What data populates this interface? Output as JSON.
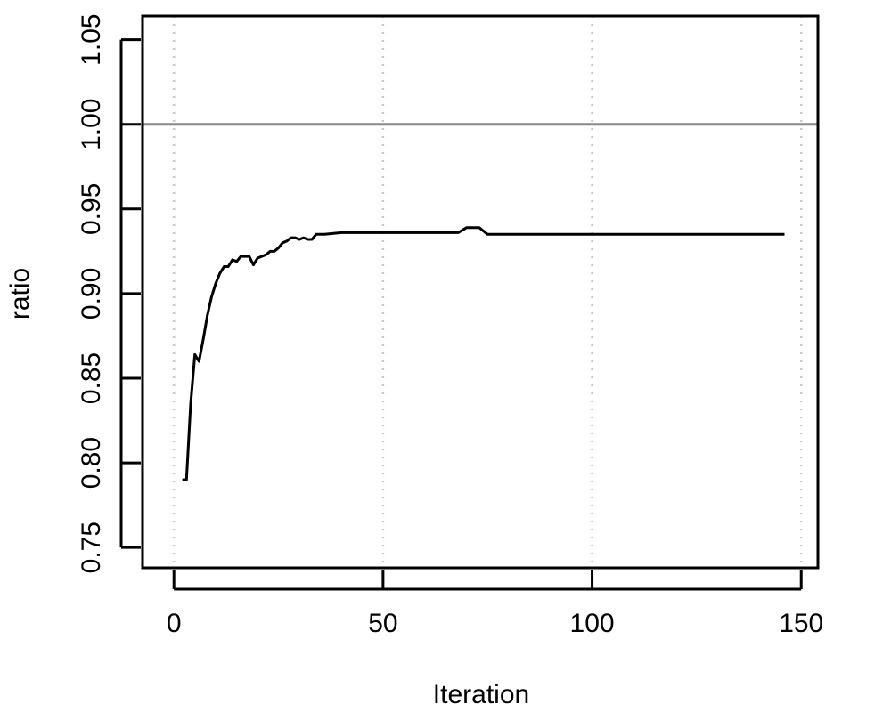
{
  "chart_data": {
    "type": "line",
    "title": "",
    "xlabel": "Iteration",
    "ylabel": "ratio",
    "xlim": [
      -7.5,
      154
    ],
    "ylim": [
      0.738,
      1.064
    ],
    "x_ticks": [
      0,
      50,
      100,
      150
    ],
    "x_tick_labels": [
      "0",
      "50",
      "100",
      "150"
    ],
    "y_ticks": [
      0.75,
      0.8,
      0.85,
      0.9,
      0.95,
      1.0,
      1.05
    ],
    "y_tick_labels": [
      "0.75",
      "0.80",
      "0.85",
      "0.90",
      "0.95",
      "1.00",
      "1.05"
    ],
    "grid": "vertical-dotted",
    "reference_line": {
      "y": 1.0,
      "color": "#888888"
    },
    "colors": {
      "series": "#000000",
      "grid": "#c8c8c8",
      "frame": "#000000"
    },
    "series": [
      {
        "x": [
          2,
          3,
          4,
          5,
          6,
          7,
          8,
          9,
          10,
          11,
          12,
          13,
          14,
          15,
          16,
          17,
          18,
          19,
          20,
          21,
          22,
          23,
          24,
          25,
          26,
          27,
          28,
          29,
          30,
          31,
          32,
          33,
          34,
          35,
          36,
          40,
          45,
          50,
          55,
          60,
          65,
          68,
          70,
          73,
          75,
          78,
          80,
          85,
          90,
          100,
          110,
          120,
          130,
          140,
          146
        ],
        "y": [
          0.79,
          0.79,
          0.835,
          0.864,
          0.86,
          0.873,
          0.887,
          0.898,
          0.906,
          0.912,
          0.916,
          0.916,
          0.92,
          0.919,
          0.922,
          0.922,
          0.922,
          0.917,
          0.921,
          0.922,
          0.923,
          0.925,
          0.925,
          0.927,
          0.93,
          0.931,
          0.933,
          0.933,
          0.932,
          0.933,
          0.932,
          0.932,
          0.935,
          0.935,
          0.935,
          0.936,
          0.936,
          0.936,
          0.936,
          0.936,
          0.936,
          0.936,
          0.939,
          0.939,
          0.935,
          0.935,
          0.935,
          0.935,
          0.935,
          0.935,
          0.935,
          0.935,
          0.935,
          0.935,
          0.935
        ]
      }
    ]
  }
}
